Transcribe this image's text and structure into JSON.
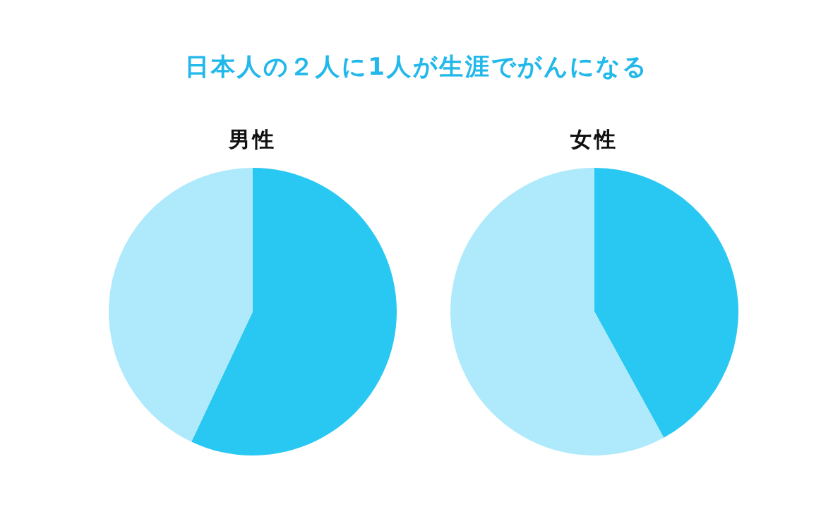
{
  "chart_data": [
    {
      "type": "other",
      "title": "日本人の２人に1人が生涯でがんになる"
    },
    {
      "type": "pie",
      "title": "男性",
      "categories": [
        null,
        null
      ],
      "values": [
        57,
        43
      ],
      "colors": [
        "#29c8f2",
        "#aeeafb"
      ]
    },
    {
      "type": "pie",
      "title": "女性",
      "categories": [
        null,
        null
      ],
      "values": [
        42,
        58
      ],
      "colors": [
        "#29c8f2",
        "#aeeafb"
      ]
    }
  ]
}
